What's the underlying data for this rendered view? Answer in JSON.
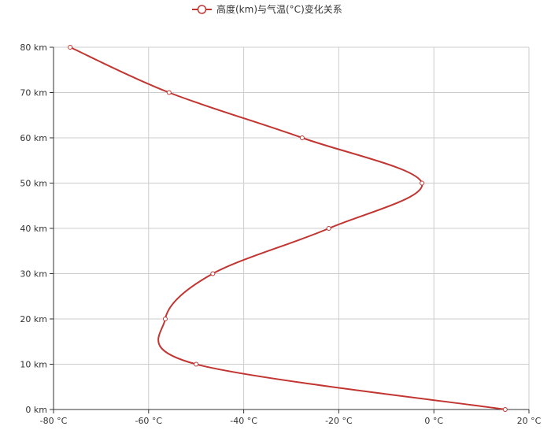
{
  "chart_data": {
    "type": "line",
    "orientation": "x-temperature-y-altitude",
    "smooth": true,
    "legend": {
      "position": "top-center",
      "label": "高度(km)与气温(°C)变化关系"
    },
    "x_axis": {
      "min": -80,
      "max": 20,
      "ticks": [
        -80,
        -60,
        -40,
        -20,
        0,
        20
      ],
      "tick_labels": [
        "-80 °C",
        "-60 °C",
        "-40 °C",
        "-20 °C",
        "0 °C",
        "20 °C"
      ]
    },
    "y_axis": {
      "min": 0,
      "max": 80,
      "ticks": [
        0,
        10,
        20,
        30,
        40,
        50,
        60,
        70,
        80
      ],
      "tick_labels": [
        "0 km",
        "10 km",
        "20 km",
        "30 km",
        "40 km",
        "50 km",
        "60 km",
        "70 km",
        "80 km"
      ]
    },
    "grid": true,
    "series": [
      {
        "name": "高度(km)与气温(°C)变化关系",
        "color": "#c23531",
        "points": [
          {
            "x": 15,
            "y": 0
          },
          {
            "x": -50,
            "y": 10
          },
          {
            "x": -56.5,
            "y": 20
          },
          {
            "x": -46.5,
            "y": 30
          },
          {
            "x": -22.1,
            "y": 40
          },
          {
            "x": -2.5,
            "y": 50
          },
          {
            "x": -27.7,
            "y": 60
          },
          {
            "x": -55.7,
            "y": 70
          },
          {
            "x": -76.5,
            "y": 80
          }
        ]
      }
    ]
  }
}
